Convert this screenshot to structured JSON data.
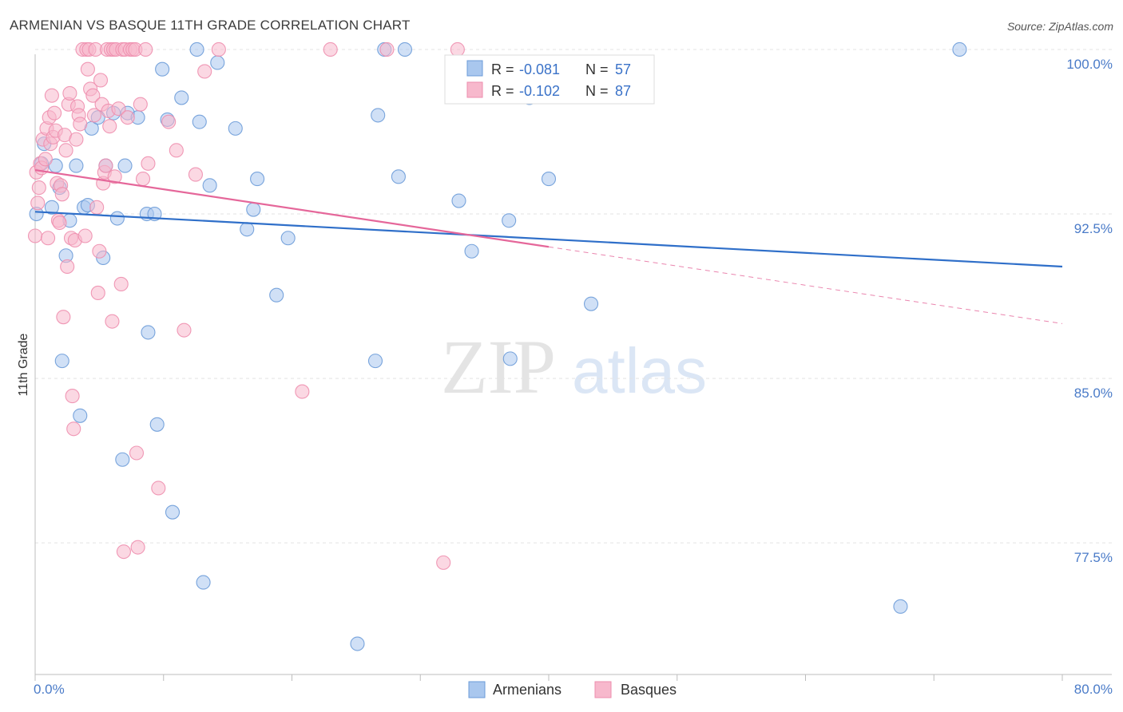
{
  "title": "ARMENIAN VS BASQUE 11TH GRADE CORRELATION CHART",
  "source": "Source: ZipAtlas.com",
  "colors": {
    "armenian_fill": "#a9c7ee",
    "armenian_stroke": "#6b9bd8",
    "armenian_line": "#2f6fc9",
    "basque_fill": "#f7b8cc",
    "basque_stroke": "#ee8eae",
    "basque_line": "#e5679a",
    "grid": "#e3e3e3",
    "tick_text": "#4a7bc8"
  },
  "legend": {
    "rows": [
      {
        "r_label": "R = ",
        "r_value": "-0.081",
        "n_label": "N = ",
        "n_value": "57"
      },
      {
        "r_label": "R = ",
        "r_value": "-0.102",
        "n_label": "N = ",
        "n_value": "87"
      }
    ]
  },
  "watermark": {
    "part1": "ZIP",
    "part2": "atlas"
  },
  "chart_data": {
    "type": "scatter",
    "title": "ARMENIAN VS BASQUE 11TH GRADE CORRELATION CHART",
    "xlabel": "",
    "ylabel": "11th Grade",
    "xlim": [
      0,
      80
    ],
    "ylim": [
      71.5,
      100.8
    ],
    "x_tick_labels": [
      "0.0%",
      "80.0%"
    ],
    "y_ticks": [
      {
        "value": 100.0,
        "label": "100.0%"
      },
      {
        "value": 92.5,
        "label": "92.5%"
      },
      {
        "value": 85.0,
        "label": "85.0%"
      },
      {
        "value": 77.5,
        "label": "77.5%"
      }
    ],
    "series": [
      {
        "name": "Armenians",
        "trend": {
          "x": [
            0,
            80
          ],
          "y": [
            92.6,
            90.1
          ],
          "dash_from": null
        },
        "points": [
          [
            0.1,
            92.5
          ],
          [
            0.5,
            94.8
          ],
          [
            0.7,
            95.7
          ],
          [
            1.3,
            92.8
          ],
          [
            1.6,
            94.7
          ],
          [
            1.9,
            93.7
          ],
          [
            2.1,
            85.8
          ],
          [
            2.4,
            90.6
          ],
          [
            2.7,
            92.2
          ],
          [
            3.2,
            94.7
          ],
          [
            3.5,
            83.3
          ],
          [
            3.8,
            92.8
          ],
          [
            4.1,
            92.9
          ],
          [
            4.4,
            96.4
          ],
          [
            4.9,
            96.9
          ],
          [
            5.3,
            90.5
          ],
          [
            5.5,
            94.7
          ],
          [
            6.1,
            97.1
          ],
          [
            6.4,
            92.3
          ],
          [
            6.8,
            81.3
          ],
          [
            7.0,
            94.7
          ],
          [
            7.2,
            97.1
          ],
          [
            8.0,
            96.9
          ],
          [
            8.7,
            92.5
          ],
          [
            8.8,
            87.1
          ],
          [
            9.3,
            92.5
          ],
          [
            9.5,
            82.9
          ],
          [
            9.9,
            99.1
          ],
          [
            10.3,
            96.8
          ],
          [
            10.7,
            78.9
          ],
          [
            11.4,
            97.8
          ],
          [
            12.6,
            100.0
          ],
          [
            12.8,
            96.7
          ],
          [
            13.1,
            75.7
          ],
          [
            13.6,
            93.8
          ],
          [
            14.2,
            99.4
          ],
          [
            15.6,
            96.4
          ],
          [
            16.5,
            91.8
          ],
          [
            17.0,
            92.7
          ],
          [
            17.3,
            94.1
          ],
          [
            18.8,
            88.8
          ],
          [
            19.7,
            91.4
          ],
          [
            25.1,
            72.9
          ],
          [
            26.5,
            85.8
          ],
          [
            26.7,
            97.0
          ],
          [
            27.2,
            100.0
          ],
          [
            28.3,
            94.2
          ],
          [
            28.8,
            100.0
          ],
          [
            33.0,
            93.1
          ],
          [
            34.0,
            90.8
          ],
          [
            36.9,
            92.2
          ],
          [
            37.0,
            85.9
          ],
          [
            38.5,
            97.8
          ],
          [
            40.0,
            94.1
          ],
          [
            43.3,
            88.4
          ],
          [
            67.4,
            74.6
          ],
          [
            72.0,
            100.0
          ]
        ]
      },
      {
        "name": "Basques",
        "trend": {
          "x": [
            0,
            40,
            80
          ],
          "y": [
            94.5,
            91.0,
            87.5
          ],
          "dash_from": 40
        },
        "points": [
          [
            0.0,
            91.5
          ],
          [
            0.1,
            94.4
          ],
          [
            0.2,
            93.0
          ],
          [
            0.3,
            93.7
          ],
          [
            0.4,
            94.8
          ],
          [
            0.5,
            94.6
          ],
          [
            0.6,
            95.9
          ],
          [
            0.8,
            95.0
          ],
          [
            0.9,
            96.4
          ],
          [
            1.0,
            91.4
          ],
          [
            1.1,
            96.9
          ],
          [
            1.2,
            95.7
          ],
          [
            1.3,
            97.9
          ],
          [
            1.4,
            96.0
          ],
          [
            1.5,
            97.1
          ],
          [
            1.6,
            96.3
          ],
          [
            1.7,
            93.9
          ],
          [
            1.8,
            92.2
          ],
          [
            1.9,
            92.1
          ],
          [
            2.0,
            93.8
          ],
          [
            2.1,
            93.4
          ],
          [
            2.2,
            87.8
          ],
          [
            2.3,
            96.1
          ],
          [
            2.4,
            95.4
          ],
          [
            2.5,
            90.1
          ],
          [
            2.6,
            97.5
          ],
          [
            2.7,
            98.0
          ],
          [
            2.8,
            91.4
          ],
          [
            2.9,
            84.2
          ],
          [
            3.0,
            82.7
          ],
          [
            3.1,
            91.3
          ],
          [
            3.2,
            95.9
          ],
          [
            3.3,
            97.4
          ],
          [
            3.4,
            97.0
          ],
          [
            3.5,
            96.6
          ],
          [
            3.7,
            100.0
          ],
          [
            3.9,
            91.5
          ],
          [
            4.0,
            100.0
          ],
          [
            4.1,
            99.1
          ],
          [
            4.2,
            100.0
          ],
          [
            4.3,
            98.2
          ],
          [
            4.5,
            97.9
          ],
          [
            4.6,
            97.0
          ],
          [
            4.7,
            100.0
          ],
          [
            4.8,
            92.8
          ],
          [
            4.9,
            88.9
          ],
          [
            5.0,
            90.8
          ],
          [
            5.1,
            98.6
          ],
          [
            5.2,
            97.5
          ],
          [
            5.3,
            93.9
          ],
          [
            5.4,
            94.4
          ],
          [
            5.5,
            94.7
          ],
          [
            5.6,
            100.0
          ],
          [
            5.7,
            97.2
          ],
          [
            5.8,
            96.5
          ],
          [
            5.9,
            100.0
          ],
          [
            6.0,
            87.6
          ],
          [
            6.1,
            100.0
          ],
          [
            6.2,
            94.2
          ],
          [
            6.3,
            100.0
          ],
          [
            6.5,
            97.3
          ],
          [
            6.7,
            89.3
          ],
          [
            6.8,
            100.0
          ],
          [
            6.9,
            77.1
          ],
          [
            7.0,
            100.0
          ],
          [
            7.2,
            96.9
          ],
          [
            7.4,
            100.0
          ],
          [
            7.6,
            100.0
          ],
          [
            7.8,
            100.0
          ],
          [
            7.9,
            81.6
          ],
          [
            8.0,
            77.3
          ],
          [
            8.2,
            97.5
          ],
          [
            8.4,
            94.1
          ],
          [
            8.6,
            100.0
          ],
          [
            8.8,
            94.8
          ],
          [
            9.6,
            80.0
          ],
          [
            10.4,
            96.7
          ],
          [
            11.0,
            95.4
          ],
          [
            11.6,
            87.2
          ],
          [
            12.5,
            94.3
          ],
          [
            13.2,
            99.0
          ],
          [
            14.3,
            100.0
          ],
          [
            20.8,
            84.4
          ],
          [
            23.0,
            100.0
          ],
          [
            27.4,
            100.0
          ],
          [
            31.8,
            76.6
          ],
          [
            32.9,
            100.0
          ]
        ]
      }
    ]
  },
  "bottom_legend": [
    {
      "label": "Armenians"
    },
    {
      "label": "Basques"
    }
  ]
}
